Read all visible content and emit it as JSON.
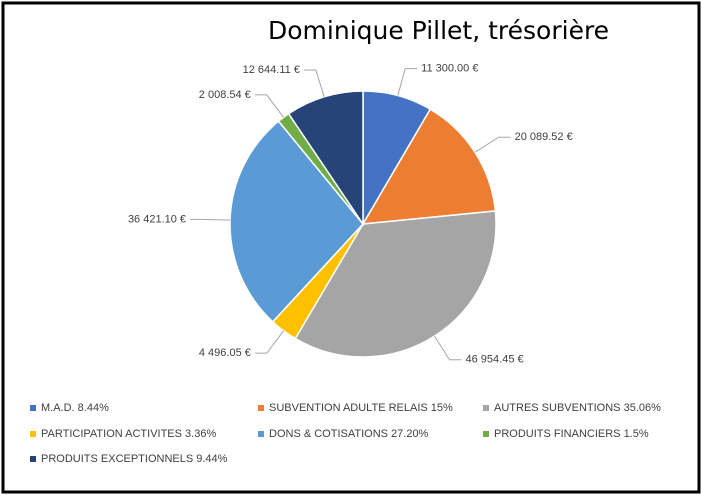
{
  "chart_data": {
    "type": "pie",
    "title": "Dominique Pillet, trésorière",
    "categories": [
      "M.A.D. 8.44%",
      "SUBVENTION ADULTE RELAIS 15%",
      "AUTRES SUBVENTIONS 35.06%",
      "PARTICIPATION ACTIVITES 3.36%",
      "DONS & COTISATIONS 27.20%",
      "PRODUITS FINANCIERS 1.5%",
      "PRODUITS EXCEPTIONNELS 9.44%"
    ],
    "values": [
      11300.0,
      20089.52,
      46954.45,
      4496.05,
      36421.1,
      2008.54,
      12644.11
    ],
    "value_labels": [
      "11 300.00 €",
      "20 089.52 €",
      "46 954.45 €",
      "4 496.05 €",
      "36 421.10 €",
      "2 008.54 €",
      "12 644.11 €"
    ],
    "colors": [
      "#4472c4",
      "#ed7d31",
      "#a5a5a5",
      "#ffc000",
      "#5b9bd5",
      "#70ad47",
      "#264478"
    ],
    "legend": "bottom"
  }
}
